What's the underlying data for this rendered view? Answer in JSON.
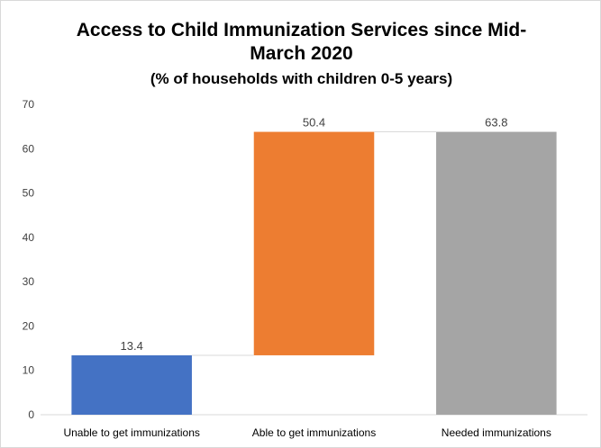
{
  "chart_data": {
    "type": "bar",
    "subtype": "waterfall",
    "title_line1": "Access to Child Immunization Services since Mid-",
    "title_line2": "March 2020",
    "subtitle": "(% of households with children  0-5 years)",
    "categories": [
      "Unable to get immunizations",
      "Able to get immunizations",
      "Needed immunizations"
    ],
    "bars": [
      {
        "label": "13.4",
        "base": 0,
        "value": 13.4,
        "color": "#4472c4"
      },
      {
        "label": "50.4",
        "base": 13.4,
        "value": 50.4,
        "color": "#ed7d31"
      },
      {
        "label": "63.8",
        "base": 0,
        "value": 63.8,
        "color": "#a5a5a5"
      }
    ],
    "ylim": [
      0,
      70
    ],
    "yticks": [
      "0",
      "10",
      "20",
      "30",
      "40",
      "50",
      "60",
      "70"
    ],
    "grid": false,
    "xlabel": "",
    "ylabel": ""
  }
}
